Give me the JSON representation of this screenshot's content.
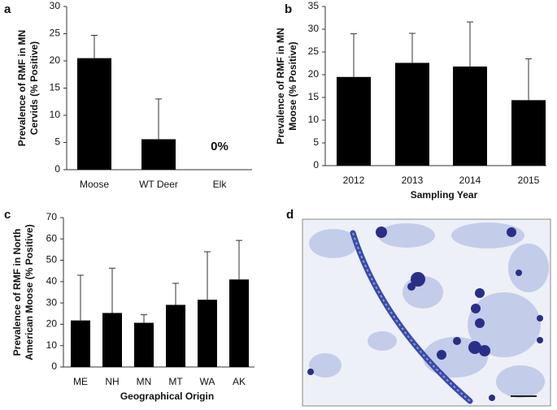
{
  "chart_data": [
    {
      "type": "bar",
      "panel_label": "a",
      "ylabel": [
        "Prevalence of RMF in MN",
        "Cervids (% Positive)"
      ],
      "categories": [
        "Moose",
        "WT Deer",
        "Elk"
      ],
      "values": [
        20.5,
        5.6,
        0
      ],
      "errors": [
        4.2,
        7.4,
        0
      ],
      "value_labels": [
        null,
        null,
        "0%"
      ],
      "color": "#000000",
      "ylim": [
        0,
        30
      ],
      "yticks": [
        0,
        5,
        10,
        15,
        20,
        25,
        30
      ]
    },
    {
      "type": "bar",
      "panel_label": "b",
      "ylabel": [
        "Prevalence of RMF in MN",
        "Moose (% Positive)"
      ],
      "xlabel": "Sampling Year",
      "categories": [
        "2012",
        "2013",
        "2014",
        "2015"
      ],
      "values": [
        19.5,
        22.6,
        21.8,
        14.4
      ],
      "errors": [
        9.5,
        6.5,
        9.8,
        9.1
      ],
      "color": "#000000",
      "ylim": [
        0,
        35
      ],
      "yticks": [
        0,
        5,
        10,
        15,
        20,
        25,
        30,
        35
      ]
    },
    {
      "type": "bar",
      "panel_label": "c",
      "ylabel": [
        "Prevalence of RMF in North",
        "American Moose (% Positive)"
      ],
      "xlabel": "Geographical Origin",
      "categories": [
        "ME",
        "NH",
        "MN",
        "MT",
        "WA",
        "AK"
      ],
      "values": [
        21.8,
        25.3,
        20.7,
        29.1,
        31.5,
        41.0
      ],
      "errors": [
        21.2,
        21.0,
        3.8,
        10.1,
        22.5,
        18.3
      ],
      "color": "#000000",
      "ylim": [
        0,
        70
      ],
      "yticks": [
        0,
        10,
        20,
        30,
        40,
        50,
        60,
        70
      ]
    }
  ],
  "image_panel": {
    "label": "d"
  }
}
